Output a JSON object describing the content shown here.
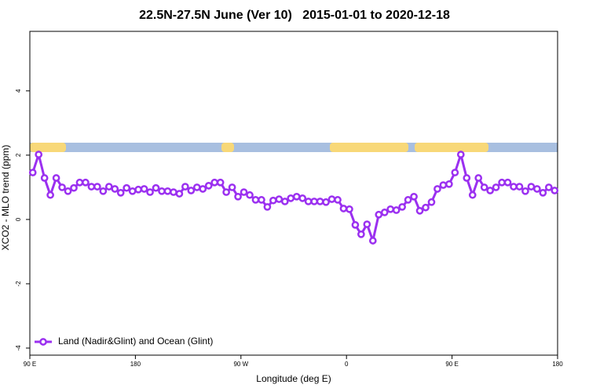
{
  "chart_data": {
    "type": "line",
    "title": "22.5N-27.5N June (Ver 10)   2015-01-01 to 2020-12-18",
    "x_label": "Longitude (deg E)",
    "y_label": "XCO2 - MLO trend (ppm)",
    "x": [
      92.5,
      97.5,
      102.5,
      107.5,
      112.5,
      117.5,
      122.5,
      127.5,
      132.5,
      137.5,
      142.5,
      147.5,
      152.5,
      157.5,
      162.5,
      167.5,
      172.5,
      177.5,
      182.5,
      187.5,
      192.5,
      197.5,
      202.5,
      207.5,
      212.5,
      217.5,
      222.5,
      227.5,
      232.5,
      237.5,
      242.5,
      247.5,
      252.5,
      257.5,
      262.5,
      267.5,
      272.5,
      277.5,
      282.5,
      287.5,
      292.5,
      297.5,
      302.5,
      307.5,
      312.5,
      317.5,
      322.5,
      327.5,
      332.5,
      337.5,
      342.5,
      347.5,
      352.5,
      357.5,
      362.5,
      367.5,
      372.5,
      377.5,
      382.5,
      387.5,
      392.5,
      397.5,
      402.5,
      407.5,
      412.5,
      417.5,
      422.5,
      427.5,
      432.5,
      437.5,
      442.5,
      447.5,
      452.5,
      457.5,
      462.5,
      467.5,
      472.5,
      477.5,
      482.5,
      487.5,
      492.5,
      497.5,
      502.5,
      507.5,
      512.5,
      517.5,
      522.5,
      527.5,
      532.5,
      537.5
    ],
    "series": [
      {
        "name": "Land (Nadir&Glint) and Ocean (Glint)",
        "color": "#9b30f0",
        "values": [
          1.46,
          2.02,
          1.29,
          0.76,
          1.29,
          1.0,
          0.88,
          0.98,
          1.15,
          1.15,
          1.02,
          1.02,
          0.88,
          1.02,
          0.95,
          0.83,
          0.98,
          0.88,
          0.93,
          0.95,
          0.85,
          0.98,
          0.88,
          0.88,
          0.85,
          0.8,
          1.02,
          0.9,
          1.0,
          0.95,
          1.05,
          1.15,
          1.15,
          0.85,
          1.0,
          0.71,
          0.85,
          0.76,
          0.61,
          0.61,
          0.39,
          0.59,
          0.63,
          0.56,
          0.66,
          0.71,
          0.66,
          0.56,
          0.56,
          0.56,
          0.54,
          0.63,
          0.61,
          0.34,
          0.32,
          -0.17,
          -0.46,
          -0.15,
          -0.66,
          0.15,
          0.22,
          0.32,
          0.29,
          0.39,
          0.61,
          0.71,
          0.27,
          0.37,
          0.54,
          0.95,
          1.07,
          1.1,
          1.46,
          2.02,
          1.29,
          0.76,
          1.29,
          1.0,
          0.9,
          1.0,
          1.15,
          1.15,
          1.02,
          1.02,
          0.88,
          1.02,
          0.95,
          0.83,
          1.0,
          0.9
        ]
      }
    ],
    "xlim": [
      90,
      540
    ],
    "xticks": [
      {
        "value": 90,
        "label": "90 E"
      },
      180,
      {
        "value": 270,
        "label": "90 W"
      },
      {
        "value": 360,
        "label": "0"
      },
      {
        "value": 450,
        "label": "90 E"
      },
      {
        "value": 540,
        "label": "180"
      }
    ],
    "ylim": [
      -4.22,
      5.85
    ],
    "yticks": [
      -4,
      -2,
      0,
      2,
      4
    ],
    "legend": "bottom-left"
  }
}
